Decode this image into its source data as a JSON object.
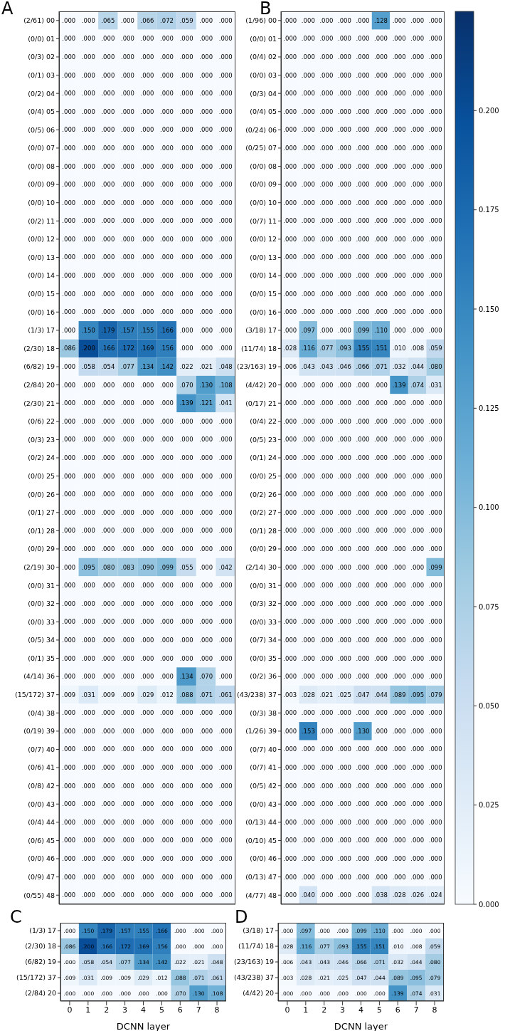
{
  "chart_data": [
    {
      "type": "heatmap",
      "title": "A",
      "categories": [
        "0",
        "1",
        "2",
        "3",
        "4",
        "5",
        "6",
        "7",
        "8"
      ],
      "tick_labels": "y",
      "y_categories": [
        "(2/61) 00",
        "(0/0) 01",
        "(0/3) 02",
        "(0/1) 03",
        "(0/2) 04",
        "(0/4) 05",
        "(0/5) 06",
        "(0/0) 07",
        "(0/0) 08",
        "(0/0) 09",
        "(0/0) 10",
        "(0/2) 11",
        "(0/0) 12",
        "(0/0) 13",
        "(0/0) 14",
        "(0/0) 15",
        "(0/0) 16",
        "(1/3) 17",
        "(2/30) 18",
        "(6/82) 19",
        "(2/84) 20",
        "(2/30) 21",
        "(0/6) 22",
        "(0/3) 23",
        "(0/2) 24",
        "(0/0) 25",
        "(0/0) 26",
        "(0/1) 27",
        "(0/1) 28",
        "(0/0) 29",
        "(2/19) 30",
        "(0/0) 31",
        "(0/0) 32",
        "(0/0) 33",
        "(0/5) 34",
        "(0/1) 35",
        "(4/14) 36",
        "(15/172) 37",
        "(0/4) 38",
        "(0/19) 39",
        "(0/7) 40",
        "(0/6) 41",
        "(0/8) 42",
        "(0/0) 43",
        "(0/4) 44",
        "(0/6) 45",
        "(0/0) 46",
        "(0/9) 47",
        "(0/55) 48"
      ],
      "cells": [
        [
          0,
          0,
          0.065,
          0,
          0.066,
          0.072,
          0.059,
          0,
          0
        ],
        [
          0,
          0,
          0,
          0,
          0,
          0,
          0,
          0,
          0
        ],
        [
          0,
          0,
          0,
          0,
          0,
          0,
          0,
          0,
          0
        ],
        [
          0,
          0,
          0,
          0,
          0,
          0,
          0,
          0,
          0
        ],
        [
          0,
          0,
          0,
          0,
          0,
          0,
          0,
          0,
          0
        ],
        [
          0,
          0,
          0,
          0,
          0,
          0,
          0,
          0,
          0
        ],
        [
          0,
          0,
          0,
          0,
          0,
          0,
          0,
          0,
          0
        ],
        [
          0,
          0,
          0,
          0,
          0,
          0,
          0,
          0,
          0
        ],
        [
          0,
          0,
          0,
          0,
          0,
          0,
          0,
          0,
          0
        ],
        [
          0,
          0,
          0,
          0,
          0,
          0,
          0,
          0,
          0
        ],
        [
          0,
          0,
          0,
          0,
          0,
          0,
          0,
          0,
          0
        ],
        [
          0,
          0,
          0,
          0,
          0,
          0,
          0,
          0,
          0
        ],
        [
          0,
          0,
          0,
          0,
          0,
          0,
          0,
          0,
          0
        ],
        [
          0,
          0,
          0,
          0,
          0,
          0,
          0,
          0,
          0
        ],
        [
          0,
          0,
          0,
          0,
          0,
          0,
          0,
          0,
          0
        ],
        [
          0,
          0,
          0,
          0,
          0,
          0,
          0,
          0,
          0
        ],
        [
          0,
          0,
          0,
          0,
          0,
          0,
          0,
          0,
          0
        ],
        [
          0,
          0.15,
          0.179,
          0.157,
          0.155,
          0.166,
          0,
          0,
          0
        ],
        [
          0.086,
          0.2,
          0.166,
          0.172,
          0.169,
          0.156,
          0,
          0,
          0
        ],
        [
          0,
          0.058,
          0.054,
          0.077,
          0.134,
          0.142,
          0.022,
          0.021,
          0.048
        ],
        [
          0,
          0,
          0,
          0,
          0,
          0,
          0.07,
          0.13,
          0.108
        ],
        [
          0,
          0,
          0,
          0,
          0,
          0,
          0.139,
          0.121,
          0.041
        ],
        [
          0,
          0,
          0,
          0,
          0,
          0,
          0,
          0,
          0
        ],
        [
          0,
          0,
          0,
          0,
          0,
          0,
          0,
          0,
          0
        ],
        [
          0,
          0,
          0,
          0,
          0,
          0,
          0,
          0,
          0
        ],
        [
          0,
          0,
          0,
          0,
          0,
          0,
          0,
          0,
          0
        ],
        [
          0,
          0,
          0,
          0,
          0,
          0,
          0,
          0,
          0
        ],
        [
          0,
          0,
          0,
          0,
          0,
          0,
          0,
          0,
          0
        ],
        [
          0,
          0,
          0,
          0,
          0,
          0,
          0,
          0,
          0
        ],
        [
          0,
          0,
          0,
          0,
          0,
          0,
          0,
          0,
          0
        ],
        [
          0,
          0.095,
          0.08,
          0.083,
          0.09,
          0.099,
          0.055,
          0,
          0.042
        ],
        [
          0,
          0,
          0,
          0,
          0,
          0,
          0,
          0,
          0
        ],
        [
          0,
          0,
          0,
          0,
          0,
          0,
          0,
          0,
          0
        ],
        [
          0,
          0,
          0,
          0,
          0,
          0,
          0,
          0,
          0
        ],
        [
          0,
          0,
          0,
          0,
          0,
          0,
          0,
          0,
          0
        ],
        [
          0,
          0,
          0,
          0,
          0,
          0,
          0,
          0,
          0
        ],
        [
          0,
          0,
          0,
          0,
          0,
          0,
          0.134,
          0.07,
          0
        ],
        [
          0.009,
          0.031,
          0.009,
          0.009,
          0.029,
          0.012,
          0.088,
          0.071,
          0.061
        ],
        [
          0,
          0,
          0,
          0,
          0,
          0,
          0,
          0,
          0
        ],
        [
          0,
          0,
          0,
          0,
          0,
          0,
          0,
          0,
          0
        ],
        [
          0,
          0,
          0,
          0,
          0,
          0,
          0,
          0,
          0
        ],
        [
          0,
          0,
          0,
          0,
          0,
          0,
          0,
          0,
          0
        ],
        [
          0,
          0,
          0,
          0,
          0,
          0,
          0,
          0,
          0
        ],
        [
          0,
          0,
          0,
          0,
          0,
          0,
          0,
          0,
          0
        ],
        [
          0,
          0,
          0,
          0,
          0,
          0,
          0,
          0,
          0
        ],
        [
          0,
          0,
          0,
          0,
          0,
          0,
          0,
          0,
          0
        ],
        [
          0,
          0,
          0,
          0,
          0,
          0,
          0,
          0,
          0
        ],
        [
          0,
          0,
          0,
          0,
          0,
          0,
          0,
          0,
          0
        ],
        [
          0,
          0,
          0,
          0,
          0,
          0,
          0,
          0,
          0
        ]
      ],
      "cell_labels": [
        [
          ".000",
          ".000",
          ".065",
          ".000",
          ".066",
          ".072",
          ".059",
          ".000",
          ".000"
        ],
        [
          ".000",
          ".000",
          ".000",
          ".000",
          ".000",
          ".000",
          ".000",
          ".000",
          ".000"
        ],
        [
          ".000",
          ".000",
          ".000",
          ".000",
          ".000",
          ".000",
          ".000",
          ".000",
          ".000"
        ],
        [
          ".000",
          ".000",
          ".000",
          ".000",
          ".000",
          ".000",
          ".000",
          ".000",
          ".000"
        ],
        [
          ".000",
          ".000",
          ".000",
          ".000",
          ".000",
          ".000",
          ".000",
          ".000",
          ".000"
        ],
        [
          ".000",
          ".000",
          ".000",
          ".000",
          ".000",
          ".000",
          ".000",
          ".000",
          ".000"
        ],
        [
          ".000",
          ".000",
          ".000",
          ".000",
          ".000",
          ".000",
          ".000",
          ".000",
          ".000"
        ],
        [
          ".000",
          ".000",
          ".000",
          ".000",
          ".000",
          ".000",
          ".000",
          ".000",
          ".000"
        ],
        [
          ".000",
          ".000",
          ".000",
          ".000",
          ".000",
          ".000",
          ".000",
          ".000",
          ".000"
        ],
        [
          ".000",
          ".000",
          ".000",
          ".000",
          ".000",
          ".000",
          ".000",
          ".000",
          ".000"
        ],
        [
          ".000",
          ".000",
          ".000",
          ".000",
          ".000",
          ".000",
          ".000",
          ".000",
          ".000"
        ],
        [
          ".000",
          ".000",
          ".000",
          ".000",
          ".000",
          ".000",
          ".000",
          ".000",
          ".000"
        ],
        [
          ".000",
          ".000",
          ".000",
          ".000",
          ".000",
          ".000",
          ".000",
          ".000",
          ".000"
        ],
        [
          ".000",
          ".000",
          ".000",
          ".000",
          ".000",
          ".000",
          ".000",
          ".000",
          ".000"
        ],
        [
          ".000",
          ".000",
          ".000",
          ".000",
          ".000",
          ".000",
          ".000",
          ".000",
          ".000"
        ],
        [
          ".000",
          ".000",
          ".000",
          ".000",
          ".000",
          ".000",
          ".000",
          ".000",
          ".000"
        ],
        [
          ".000",
          ".000",
          ".000",
          ".000",
          ".000",
          ".000",
          ".000",
          ".000",
          ".000"
        ],
        [
          ".000",
          ".150",
          ".179",
          ".157",
          ".155",
          ".166",
          ".000",
          ".000",
          ".000"
        ],
        [
          ".086",
          ".200",
          ".166",
          ".172",
          ".169",
          ".156",
          ".000",
          ".000",
          ".000"
        ],
        [
          ".000",
          ".058",
          ".054",
          ".077",
          ".134",
          ".142",
          ".022",
          ".021",
          ".048"
        ],
        [
          ".000",
          ".000",
          ".000",
          ".000",
          ".000",
          ".000",
          ".070",
          ".130",
          ".108"
        ],
        [
          ".000",
          ".000",
          ".000",
          ".000",
          ".000",
          ".000",
          ".139",
          ".121",
          ".041"
        ],
        [
          ".000",
          ".000",
          ".000",
          ".000",
          ".000",
          ".000",
          ".000",
          ".000",
          ".000"
        ],
        [
          ".000",
          ".000",
          ".000",
          ".000",
          ".000",
          ".000",
          ".000",
          ".000",
          ".000"
        ],
        [
          ".000",
          ".000",
          ".000",
          ".000",
          ".000",
          ".000",
          ".000",
          ".000",
          ".000"
        ],
        [
          ".000",
          ".000",
          ".000",
          ".000",
          ".000",
          ".000",
          ".000",
          ".000",
          ".000"
        ],
        [
          ".000",
          ".000",
          ".000",
          ".000",
          ".000",
          ".000",
          ".000",
          ".000",
          ".000"
        ],
        [
          ".000",
          ".000",
          ".000",
          ".000",
          ".000",
          ".000",
          ".000",
          ".000",
          ".000"
        ],
        [
          ".000",
          ".000",
          ".000",
          ".000",
          ".000",
          ".000",
          ".000",
          ".000",
          ".000"
        ],
        [
          ".000",
          ".000",
          ".000",
          ".000",
          ".000",
          ".000",
          ".000",
          ".000",
          ".000"
        ],
        [
          ".000",
          ".095",
          ".080",
          ".083",
          ".090",
          ".099",
          ".055",
          ".000",
          ".042"
        ],
        [
          ".000",
          ".000",
          ".000",
          ".000",
          ".000",
          ".000",
          ".000",
          ".000",
          ".000"
        ],
        [
          ".000",
          ".000",
          ".000",
          ".000",
          ".000",
          ".000",
          ".000",
          ".000",
          ".000"
        ],
        [
          ".000",
          ".000",
          ".000",
          ".000",
          ".000",
          ".000",
          ".000",
          ".000",
          ".000"
        ],
        [
          ".000",
          ".000",
          ".000",
          ".000",
          ".000",
          ".000",
          ".000",
          ".000",
          ".000"
        ],
        [
          ".000",
          ".000",
          ".000",
          ".000",
          ".000",
          ".000",
          ".000",
          ".000",
          ".000"
        ],
        [
          ".000",
          ".000",
          ".000",
          ".000",
          ".000",
          ".000",
          ".134",
          ".070",
          ".000"
        ],
        [
          ".009",
          ".031",
          ".009",
          ".009",
          ".029",
          ".012",
          ".088",
          ".071",
          ".061"
        ],
        [
          ".000",
          ".000",
          ".000",
          ".000",
          ".000",
          ".000",
          ".000",
          ".000",
          ".000"
        ],
        [
          ".000",
          ".000",
          ".000",
          ".000",
          ".000",
          ".000",
          ".000",
          ".000",
          ".000"
        ],
        [
          ".000",
          ".000",
          ".000",
          ".000",
          ".000",
          ".000",
          ".000",
          ".000",
          ".000"
        ],
        [
          ".000",
          ".000",
          ".000",
          ".000",
          ".000",
          ".000",
          ".000",
          ".000",
          ".000"
        ],
        [
          ".000",
          ".000",
          ".000",
          ".000",
          ".000",
          ".000",
          ".000",
          ".000",
          ".000"
        ],
        [
          ".000",
          ".000",
          ".000",
          ".000",
          ".000",
          ".000",
          ".000",
          ".000",
          ".000"
        ],
        [
          ".000",
          ".000",
          ".000",
          ".000",
          ".000",
          ".000",
          ".000",
          ".000",
          ".000"
        ],
        [
          ".000",
          ".000",
          ".000",
          ".000",
          ".000",
          ".000",
          ".000",
          ".000",
          ".000"
        ],
        [
          ".000",
          ".000",
          ".000",
          ".000",
          ".000",
          ".000",
          ".000",
          ".000",
          ".000"
        ],
        [
          ".000",
          ".000",
          ".000",
          ".000",
          ".000",
          ".000",
          ".000",
          ".000",
          ".000"
        ],
        [
          ".000",
          ".000",
          ".000",
          ".000",
          ".000",
          ".000",
          ".000",
          ".000",
          ".000"
        ]
      ]
    },
    {
      "type": "heatmap",
      "title": "B",
      "categories": [
        "0",
        "1",
        "2",
        "3",
        "4",
        "5",
        "6",
        "7",
        "8"
      ],
      "tick_labels": "y",
      "clim": [
        0,
        0.225
      ],
      "cticks": [
        {
          "value": 0,
          "label": "0.000"
        },
        {
          "value": 0.025,
          "label": "0.025"
        },
        {
          "value": 0.05,
          "label": "0.050"
        },
        {
          "value": 0.075,
          "label": "0.075"
        },
        {
          "value": 0.1,
          "label": "0.100"
        },
        {
          "value": 0.125,
          "label": "0.125"
        },
        {
          "value": 0.15,
          "label": "0.150"
        },
        {
          "value": 0.175,
          "label": "0.175"
        },
        {
          "value": 0.2,
          "label": "0.200"
        }
      ],
      "y_categories": [
        "(1/96) 00",
        "(0/0) 01",
        "(0/4) 02",
        "(0/0) 03",
        "(0/3) 04",
        "(0/4) 05",
        "(0/24) 06",
        "(0/25) 07",
        "(0/0) 08",
        "(0/0) 09",
        "(0/0) 10",
        "(0/7) 11",
        "(0/0) 12",
        "(0/0) 13",
        "(0/0) 14",
        "(0/0) 15",
        "(0/0) 16",
        "(3/18) 17",
        "(11/74) 18",
        "(23/163) 19",
        "(4/42) 20",
        "(0/17) 21",
        "(0/4) 22",
        "(0/5) 23",
        "(0/1) 24",
        "(0/0) 25",
        "(0/2) 26",
        "(0/2) 27",
        "(0/1) 28",
        "(0/0) 29",
        "(2/14) 30",
        "(0/0) 31",
        "(0/3) 32",
        "(0/0) 33",
        "(0/7) 34",
        "(0/0) 35",
        "(0/2) 36",
        "(43/238) 37",
        "(0/3) 38",
        "(1/26) 39",
        "(0/7) 40",
        "(0/7) 41",
        "(0/5) 42",
        "(0/0) 43",
        "(0/13) 44",
        "(0/10) 45",
        "(0/0) 46",
        "(0/13) 47",
        "(4/77) 48"
      ],
      "cells": [
        [
          0,
          0,
          0,
          0,
          0,
          0.128,
          0,
          0,
          0
        ],
        [
          0,
          0,
          0,
          0,
          0,
          0,
          0,
          0,
          0
        ],
        [
          0,
          0,
          0,
          0,
          0,
          0,
          0,
          0,
          0
        ],
        [
          0,
          0,
          0,
          0,
          0,
          0,
          0,
          0,
          0
        ],
        [
          0,
          0,
          0,
          0,
          0,
          0,
          0,
          0,
          0
        ],
        [
          0,
          0,
          0,
          0,
          0,
          0,
          0,
          0,
          0
        ],
        [
          0,
          0,
          0,
          0,
          0,
          0,
          0,
          0,
          0
        ],
        [
          0,
          0,
          0,
          0,
          0,
          0,
          0,
          0,
          0
        ],
        [
          0,
          0,
          0,
          0,
          0,
          0,
          0,
          0,
          0
        ],
        [
          0,
          0,
          0,
          0,
          0,
          0,
          0,
          0,
          0
        ],
        [
          0,
          0,
          0,
          0,
          0,
          0,
          0,
          0,
          0
        ],
        [
          0,
          0,
          0,
          0,
          0,
          0,
          0,
          0,
          0
        ],
        [
          0,
          0,
          0,
          0,
          0,
          0,
          0,
          0,
          0
        ],
        [
          0,
          0,
          0,
          0,
          0,
          0,
          0,
          0,
          0
        ],
        [
          0,
          0,
          0,
          0,
          0,
          0,
          0,
          0,
          0
        ],
        [
          0,
          0,
          0,
          0,
          0,
          0,
          0,
          0,
          0
        ],
        [
          0,
          0,
          0,
          0,
          0,
          0,
          0,
          0,
          0
        ],
        [
          0,
          0.097,
          0,
          0,
          0.099,
          0.11,
          0,
          0,
          0
        ],
        [
          0.028,
          0.116,
          0.077,
          0.093,
          0.155,
          0.151,
          0.01,
          0.008,
          0.059
        ],
        [
          0.006,
          0.043,
          0.043,
          0.046,
          0.066,
          0.071,
          0.032,
          0.044,
          0.08
        ],
        [
          0,
          0,
          0,
          0,
          0,
          0,
          0.139,
          0.074,
          0.031
        ],
        [
          0,
          0,
          0,
          0,
          0,
          0,
          0,
          0,
          0
        ],
        [
          0,
          0,
          0,
          0,
          0,
          0,
          0,
          0,
          0
        ],
        [
          0,
          0,
          0,
          0,
          0,
          0,
          0,
          0,
          0
        ],
        [
          0,
          0,
          0,
          0,
          0,
          0,
          0,
          0,
          0
        ],
        [
          0,
          0,
          0,
          0,
          0,
          0,
          0,
          0,
          0
        ],
        [
          0,
          0,
          0,
          0,
          0,
          0,
          0,
          0,
          0
        ],
        [
          0,
          0,
          0,
          0,
          0,
          0,
          0,
          0,
          0
        ],
        [
          0,
          0,
          0,
          0,
          0,
          0,
          0,
          0,
          0
        ],
        [
          0,
          0,
          0,
          0,
          0,
          0,
          0,
          0,
          0
        ],
        [
          0,
          0,
          0,
          0,
          0,
          0,
          0,
          0,
          0.099
        ],
        [
          0,
          0,
          0,
          0,
          0,
          0,
          0,
          0,
          0
        ],
        [
          0,
          0,
          0,
          0,
          0,
          0,
          0,
          0,
          0
        ],
        [
          0,
          0,
          0,
          0,
          0,
          0,
          0,
          0,
          0
        ],
        [
          0,
          0,
          0,
          0,
          0,
          0,
          0,
          0,
          0
        ],
        [
          0,
          0,
          0,
          0,
          0,
          0,
          0,
          0,
          0
        ],
        [
          0,
          0,
          0,
          0,
          0,
          0,
          0,
          0,
          0
        ],
        [
          0.003,
          0.028,
          0.021,
          0.025,
          0.047,
          0.044,
          0.089,
          0.095,
          0.079
        ],
        [
          0,
          0,
          0,
          0,
          0,
          0,
          0,
          0,
          0
        ],
        [
          0,
          0.153,
          0,
          0,
          0.13,
          0,
          0,
          0,
          0
        ],
        [
          0,
          0,
          0,
          0,
          0,
          0,
          0,
          0,
          0
        ],
        [
          0,
          0,
          0,
          0,
          0,
          0,
          0,
          0,
          0
        ],
        [
          0,
          0,
          0,
          0,
          0,
          0,
          0,
          0,
          0
        ],
        [
          0,
          0,
          0,
          0,
          0,
          0,
          0,
          0,
          0
        ],
        [
          0,
          0,
          0,
          0,
          0,
          0,
          0,
          0,
          0
        ],
        [
          0,
          0,
          0,
          0,
          0,
          0,
          0,
          0,
          0
        ],
        [
          0,
          0,
          0,
          0,
          0,
          0,
          0,
          0,
          0
        ],
        [
          0,
          0,
          0,
          0,
          0,
          0,
          0,
          0,
          0
        ],
        [
          0,
          0.04,
          0,
          0,
          0,
          0.038,
          0.028,
          0.026,
          0.024
        ]
      ],
      "cell_labels": [
        [
          ".000",
          ".000",
          ".000",
          ".000",
          ".000",
          ".128",
          ".000",
          ".000",
          ".000"
        ],
        [
          ".000",
          ".000",
          ".000",
          ".000",
          ".000",
          ".000",
          ".000",
          ".000",
          ".000"
        ],
        [
          ".000",
          ".000",
          ".000",
          ".000",
          ".000",
          ".000",
          ".000",
          ".000",
          ".000"
        ],
        [
          ".000",
          ".000",
          ".000",
          ".000",
          ".000",
          ".000",
          ".000",
          ".000",
          ".000"
        ],
        [
          ".000",
          ".000",
          ".000",
          ".000",
          ".000",
          ".000",
          ".000",
          ".000",
          ".000"
        ],
        [
          ".000",
          ".000",
          ".000",
          ".000",
          ".000",
          ".000",
          ".000",
          ".000",
          ".000"
        ],
        [
          ".000",
          ".000",
          ".000",
          ".000",
          ".000",
          ".000",
          ".000",
          ".000",
          ".000"
        ],
        [
          ".000",
          ".000",
          ".000",
          ".000",
          ".000",
          ".000",
          ".000",
          ".000",
          ".000"
        ],
        [
          ".000",
          ".000",
          ".000",
          ".000",
          ".000",
          ".000",
          ".000",
          ".000",
          ".000"
        ],
        [
          ".000",
          ".000",
          ".000",
          ".000",
          ".000",
          ".000",
          ".000",
          ".000",
          ".000"
        ],
        [
          ".000",
          ".000",
          ".000",
          ".000",
          ".000",
          ".000",
          ".000",
          ".000",
          ".000"
        ],
        [
          ".000",
          ".000",
          ".000",
          ".000",
          ".000",
          ".000",
          ".000",
          ".000",
          ".000"
        ],
        [
          ".000",
          ".000",
          ".000",
          ".000",
          ".000",
          ".000",
          ".000",
          ".000",
          ".000"
        ],
        [
          ".000",
          ".000",
          ".000",
          ".000",
          ".000",
          ".000",
          ".000",
          ".000",
          ".000"
        ],
        [
          ".000",
          ".000",
          ".000",
          ".000",
          ".000",
          ".000",
          ".000",
          ".000",
          ".000"
        ],
        [
          ".000",
          ".000",
          ".000",
          ".000",
          ".000",
          ".000",
          ".000",
          ".000",
          ".000"
        ],
        [
          ".000",
          ".000",
          ".000",
          ".000",
          ".000",
          ".000",
          ".000",
          ".000",
          ".000"
        ],
        [
          ".000",
          ".097",
          ".000",
          ".000",
          ".099",
          ".110",
          ".000",
          ".000",
          ".000"
        ],
        [
          ".028",
          ".116",
          ".077",
          ".093",
          ".155",
          ".151",
          ".010",
          ".008",
          ".059"
        ],
        [
          ".006",
          ".043",
          ".043",
          ".046",
          ".066",
          ".071",
          ".032",
          ".044",
          ".080"
        ],
        [
          ".000",
          ".000",
          ".000",
          ".000",
          ".000",
          ".000",
          ".139",
          ".074",
          ".031"
        ],
        [
          ".000",
          ".000",
          ".000",
          ".000",
          ".000",
          ".000",
          ".000",
          ".000",
          ".000"
        ],
        [
          ".000",
          ".000",
          ".000",
          ".000",
          ".000",
          ".000",
          ".000",
          ".000",
          ".000"
        ],
        [
          ".000",
          ".000",
          ".000",
          ".000",
          ".000",
          ".000",
          ".000",
          ".000",
          ".000"
        ],
        [
          ".000",
          ".000",
          ".000",
          ".000",
          ".000",
          ".000",
          ".000",
          ".000",
          ".000"
        ],
        [
          ".000",
          ".000",
          ".000",
          ".000",
          ".000",
          ".000",
          ".000",
          ".000",
          ".000"
        ],
        [
          ".000",
          ".000",
          ".000",
          ".000",
          ".000",
          ".000",
          ".000",
          ".000",
          ".000"
        ],
        [
          ".000",
          ".000",
          ".000",
          ".000",
          ".000",
          ".000",
          ".000",
          ".000",
          ".000"
        ],
        [
          ".000",
          ".000",
          ".000",
          ".000",
          ".000",
          ".000",
          ".000",
          ".000",
          ".000"
        ],
        [
          ".000",
          ".000",
          ".000",
          ".000",
          ".000",
          ".000",
          ".000",
          ".000",
          ".000"
        ],
        [
          ".000",
          ".000",
          ".000",
          ".000",
          ".000",
          ".000",
          ".000",
          ".000",
          ".099"
        ],
        [
          ".000",
          ".000",
          ".000",
          ".000",
          ".000",
          ".000",
          ".000",
          ".000",
          ".000"
        ],
        [
          ".000",
          ".000",
          ".000",
          ".000",
          ".000",
          ".000",
          ".000",
          ".000",
          ".000"
        ],
        [
          ".000",
          ".000",
          ".000",
          ".000",
          ".000",
          ".000",
          ".000",
          ".000",
          ".000"
        ],
        [
          ".000",
          ".000",
          ".000",
          ".000",
          ".000",
          ".000",
          ".000",
          ".000",
          ".000"
        ],
        [
          ".000",
          ".000",
          ".000",
          ".000",
          ".000",
          ".000",
          ".000",
          ".000",
          ".000"
        ],
        [
          ".000",
          ".000",
          ".000",
          ".000",
          ".000",
          ".000",
          ".000",
          ".000",
          ".000"
        ],
        [
          ".003",
          ".028",
          ".021",
          ".025",
          ".047",
          ".044",
          ".089",
          ".095",
          ".079"
        ],
        [
          ".000",
          ".000",
          ".000",
          ".000",
          ".000",
          ".000",
          ".000",
          ".000",
          ".000"
        ],
        [
          ".000",
          ".153",
          ".000",
          ".000",
          ".130",
          ".000",
          ".000",
          ".000",
          ".000"
        ],
        [
          ".000",
          ".000",
          ".000",
          ".000",
          ".000",
          ".000",
          ".000",
          ".000",
          ".000"
        ],
        [
          ".000",
          ".000",
          ".000",
          ".000",
          ".000",
          ".000",
          ".000",
          ".000",
          ".000"
        ],
        [
          ".000",
          ".000",
          ".000",
          ".000",
          ".000",
          ".000",
          ".000",
          ".000",
          ".000"
        ],
        [
          ".000",
          ".000",
          ".000",
          ".000",
          ".000",
          ".000",
          ".000",
          ".000",
          ".000"
        ],
        [
          ".000",
          ".000",
          ".000",
          ".000",
          ".000",
          ".000",
          ".000",
          ".000",
          ".000"
        ],
        [
          ".000",
          ".000",
          ".000",
          ".000",
          ".000",
          ".000",
          ".000",
          ".000",
          ".000"
        ],
        [
          ".000",
          ".000",
          ".000",
          ".000",
          ".000",
          ".000",
          ".000",
          ".000",
          ".000"
        ],
        [
          ".000",
          ".000",
          ".000",
          ".000",
          ".000",
          ".000",
          ".000",
          ".000",
          ".000"
        ],
        [
          ".000",
          ".040",
          ".000",
          ".000",
          ".000",
          ".038",
          ".028",
          ".026",
          ".024"
        ]
      ]
    },
    {
      "type": "heatmap",
      "title": "C",
      "xlabel": "DCNN layer",
      "categories": [
        "0",
        "1",
        "2",
        "3",
        "4",
        "5",
        "6",
        "7",
        "8"
      ],
      "y_categories": [
        "(1/3) 17",
        "(2/30) 18",
        "(6/82) 19",
        "(15/172) 37",
        "(2/84) 20"
      ],
      "cells": [
        [
          0,
          0.15,
          0.179,
          0.157,
          0.155,
          0.166,
          0,
          0,
          0
        ],
        [
          0.086,
          0.2,
          0.166,
          0.172,
          0.169,
          0.156,
          0,
          0,
          0
        ],
        [
          0,
          0.058,
          0.054,
          0.077,
          0.134,
          0.142,
          0.022,
          0.021,
          0.048
        ],
        [
          0.009,
          0.031,
          0.009,
          0.009,
          0.029,
          0.012,
          0.088,
          0.071,
          0.061
        ],
        [
          0,
          0,
          0,
          0,
          0,
          0,
          0.07,
          0.13,
          0.108
        ]
      ],
      "cell_labels": [
        [
          ".000",
          ".150",
          ".179",
          ".157",
          ".155",
          ".166",
          ".000",
          ".000",
          ".000"
        ],
        [
          ".086",
          ".200",
          ".166",
          ".172",
          ".169",
          ".156",
          ".000",
          ".000",
          ".000"
        ],
        [
          ".000",
          ".058",
          ".054",
          ".077",
          ".134",
          ".142",
          ".022",
          ".021",
          ".048"
        ],
        [
          ".009",
          ".031",
          ".009",
          ".009",
          ".029",
          ".012",
          ".088",
          ".071",
          ".061"
        ],
        [
          ".000",
          ".000",
          ".000",
          ".000",
          ".000",
          ".000",
          ".070",
          ".130",
          ".108"
        ]
      ]
    },
    {
      "type": "heatmap",
      "title": "D",
      "xlabel": "DCNN layer",
      "categories": [
        "0",
        "1",
        "2",
        "3",
        "4",
        "5",
        "6",
        "7",
        "8"
      ],
      "y_categories": [
        "(3/18) 17",
        "(11/74) 18",
        "(23/163) 19",
        "(43/238) 37",
        "(4/42) 20"
      ],
      "cells": [
        [
          0,
          0.097,
          0,
          0,
          0.099,
          0.11,
          0,
          0,
          0
        ],
        [
          0.028,
          0.116,
          0.077,
          0.093,
          0.155,
          0.151,
          0.01,
          0.008,
          0.059
        ],
        [
          0.006,
          0.043,
          0.043,
          0.046,
          0.066,
          0.071,
          0.032,
          0.044,
          0.08
        ],
        [
          0.003,
          0.028,
          0.021,
          0.025,
          0.047,
          0.044,
          0.089,
          0.095,
          0.079
        ],
        [
          0,
          0,
          0,
          0,
          0,
          0,
          0.139,
          0.074,
          0.031
        ]
      ],
      "cell_labels": [
        [
          ".000",
          ".097",
          ".000",
          ".000",
          ".099",
          ".110",
          ".000",
          ".000",
          ".000"
        ],
        [
          ".028",
          ".116",
          ".077",
          ".093",
          ".155",
          ".151",
          ".010",
          ".008",
          ".059"
        ],
        [
          ".006",
          ".043",
          ".043",
          ".046",
          ".066",
          ".071",
          ".032",
          ".044",
          ".080"
        ],
        [
          ".003",
          ".028",
          ".021",
          ".025",
          ".047",
          ".044",
          ".089",
          ".095",
          ".079"
        ],
        [
          ".000",
          ".000",
          ".000",
          ".000",
          ".000",
          ".000",
          ".139",
          ".074",
          ".031"
        ]
      ]
    }
  ]
}
